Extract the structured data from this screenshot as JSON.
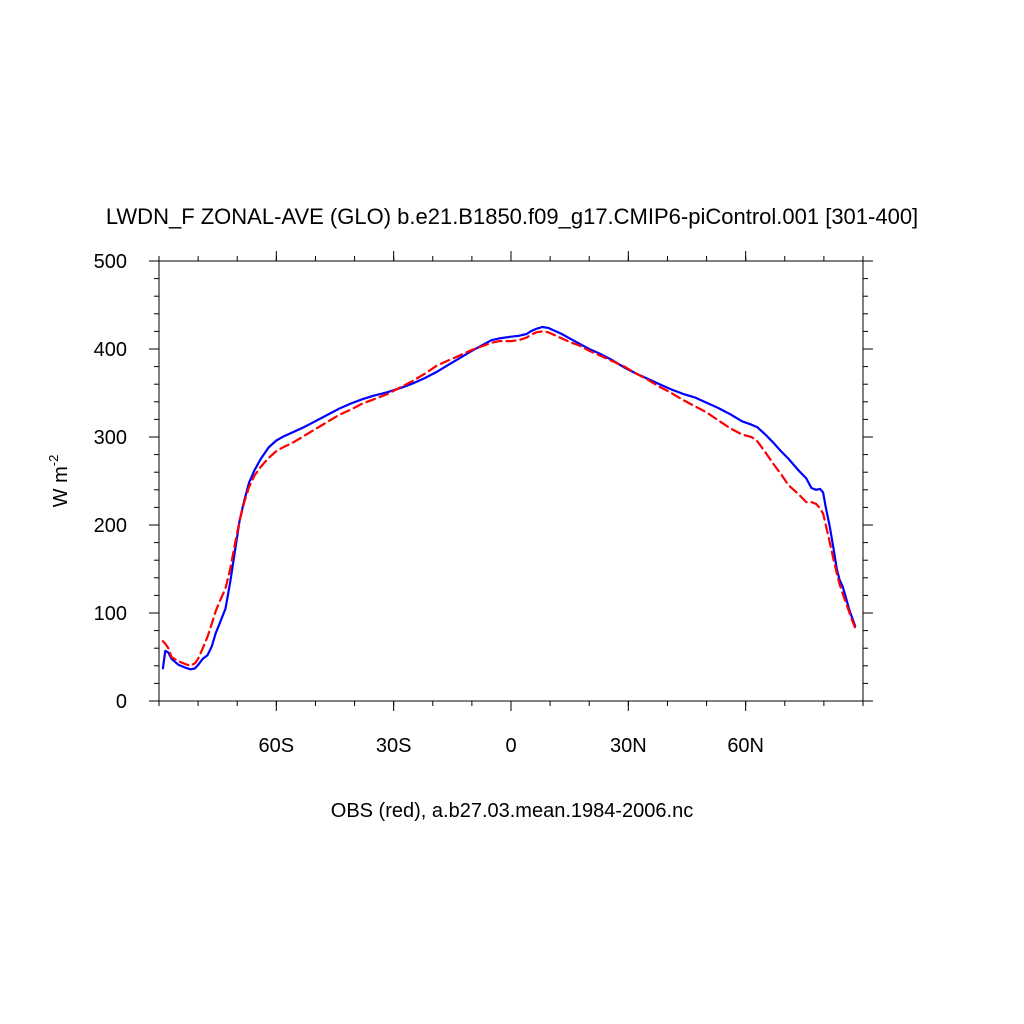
{
  "chart_data": {
    "type": "line",
    "title": "LWDN_F ZONAL-AVE (GLO) b.e21.B1850.f09_g17.CMIP6-piControl.001 [301-400]",
    "xlabel": "OBS (red), a.b27.03.mean.1984-2006.nc",
    "ylabel": {
      "base": "W m",
      "sup": "-2"
    },
    "xlim": [
      -90,
      90
    ],
    "ylim": [
      0,
      500
    ],
    "grid": false,
    "x_ticks": [
      {
        "value": -60,
        "label": "60S"
      },
      {
        "value": -30,
        "label": "30S"
      },
      {
        "value": 0,
        "label": "0"
      },
      {
        "value": 30,
        "label": "30N"
      },
      {
        "value": 60,
        "label": "60N"
      }
    ],
    "y_ticks": [
      {
        "value": 0,
        "label": "0"
      },
      {
        "value": 100,
        "label": "100"
      },
      {
        "value": 200,
        "label": "200"
      },
      {
        "value": 300,
        "label": "300"
      },
      {
        "value": 400,
        "label": "400"
      },
      {
        "value": 500,
        "label": "500"
      }
    ],
    "series": [
      {
        "color": "#0000ff",
        "style": "solid",
        "points": [
          [
            -89.0,
            37
          ],
          [
            -88.4,
            57
          ],
          [
            -87.6,
            55
          ],
          [
            -86.8,
            48
          ],
          [
            -85.0,
            41
          ],
          [
            -83.3,
            38
          ],
          [
            -82.0,
            36
          ],
          [
            -80.8,
            37
          ],
          [
            -80.0,
            41
          ],
          [
            -78.8,
            48
          ],
          [
            -77.6,
            52
          ],
          [
            -76.5,
            62
          ],
          [
            -75.5,
            77
          ],
          [
            -74.5,
            88
          ],
          [
            -73.0,
            105
          ],
          [
            -71.8,
            135
          ],
          [
            -70.6,
            170
          ],
          [
            -69.4,
            205
          ],
          [
            -68.2,
            228
          ],
          [
            -67.0,
            248
          ],
          [
            -65.6,
            262
          ],
          [
            -64.0,
            275
          ],
          [
            -62.0,
            288
          ],
          [
            -60.0,
            296
          ],
          [
            -58.0,
            301
          ],
          [
            -56.0,
            305
          ],
          [
            -53.0,
            311
          ],
          [
            -50.0,
            318
          ],
          [
            -47.0,
            325
          ],
          [
            -44.0,
            332
          ],
          [
            -41.0,
            338
          ],
          [
            -38.0,
            343
          ],
          [
            -35.0,
            347
          ],
          [
            -31.5,
            351
          ],
          [
            -28.0,
            356
          ],
          [
            -25.0,
            361
          ],
          [
            -22.0,
            367
          ],
          [
            -19.0,
            374
          ],
          [
            -16.0,
            382
          ],
          [
            -13.0,
            390
          ],
          [
            -10.0,
            398
          ],
          [
            -7.5,
            404
          ],
          [
            -5.0,
            410
          ],
          [
            -3.0,
            412
          ],
          [
            0.0,
            414
          ],
          [
            2.0,
            415
          ],
          [
            4.0,
            417
          ],
          [
            5.0,
            420
          ],
          [
            6.5,
            423
          ],
          [
            8.0,
            425
          ],
          [
            9.5,
            424
          ],
          [
            11.0,
            421
          ],
          [
            13.0,
            417
          ],
          [
            15.0,
            412
          ],
          [
            17.5,
            406
          ],
          [
            20.0,
            400
          ],
          [
            23.0,
            394
          ],
          [
            26.0,
            387
          ],
          [
            29.0,
            379
          ],
          [
            32.0,
            372
          ],
          [
            35.0,
            366
          ],
          [
            38.0,
            360
          ],
          [
            41.0,
            354
          ],
          [
            44.0,
            349
          ],
          [
            47.0,
            345
          ],
          [
            50.0,
            339
          ],
          [
            53.0,
            333
          ],
          [
            56.0,
            326
          ],
          [
            59.0,
            318
          ],
          [
            61.5,
            314
          ],
          [
            63.0,
            311
          ],
          [
            65.0,
            303
          ],
          [
            67.0,
            294
          ],
          [
            69.0,
            284
          ],
          [
            71.0,
            275
          ],
          [
            73.5,
            262
          ],
          [
            75.5,
            253
          ],
          [
            76.8,
            242
          ],
          [
            78.0,
            240
          ],
          [
            79.0,
            241
          ],
          [
            79.8,
            237
          ],
          [
            80.5,
            220
          ],
          [
            81.5,
            198
          ],
          [
            82.5,
            172
          ],
          [
            83.3,
            150
          ],
          [
            84.0,
            138
          ],
          [
            84.8,
            130
          ],
          [
            85.6,
            118
          ],
          [
            86.4,
            105
          ],
          [
            87.2,
            95
          ],
          [
            88.0,
            85
          ]
        ]
      },
      {
        "color": "#ff0000",
        "style": "dashed",
        "points": [
          [
            -89.0,
            68
          ],
          [
            -88.4,
            65
          ],
          [
            -87.6,
            60
          ],
          [
            -86.8,
            50
          ],
          [
            -85.0,
            45
          ],
          [
            -83.3,
            42
          ],
          [
            -82.0,
            40
          ],
          [
            -80.8,
            43
          ],
          [
            -80.0,
            48
          ],
          [
            -78.8,
            60
          ],
          [
            -77.6,
            73
          ],
          [
            -76.5,
            88
          ],
          [
            -75.5,
            102
          ],
          [
            -74.5,
            113
          ],
          [
            -73.0,
            128
          ],
          [
            -71.8,
            150
          ],
          [
            -70.6,
            178
          ],
          [
            -69.4,
            205
          ],
          [
            -68.2,
            226
          ],
          [
            -67.0,
            243
          ],
          [
            -65.6,
            256
          ],
          [
            -64.0,
            266
          ],
          [
            -62.0,
            276
          ],
          [
            -60.0,
            284
          ],
          [
            -58.0,
            289
          ],
          [
            -56.0,
            293
          ],
          [
            -53.0,
            301
          ],
          [
            -50.0,
            309
          ],
          [
            -47.0,
            317
          ],
          [
            -44.0,
            325
          ],
          [
            -41.0,
            331
          ],
          [
            -38.0,
            338
          ],
          [
            -35.0,
            343
          ],
          [
            -31.5,
            349
          ],
          [
            -28.0,
            357
          ],
          [
            -25.0,
            364
          ],
          [
            -22.0,
            372
          ],
          [
            -19.0,
            381
          ],
          [
            -16.0,
            387
          ],
          [
            -13.0,
            393
          ],
          [
            -10.0,
            399
          ],
          [
            -7.5,
            403
          ],
          [
            -5.0,
            407
          ],
          [
            -3.0,
            409
          ],
          [
            0.0,
            409
          ],
          [
            2.0,
            410
          ],
          [
            4.0,
            413
          ],
          [
            5.0,
            416
          ],
          [
            6.5,
            419
          ],
          [
            8.0,
            420
          ],
          [
            9.5,
            419
          ],
          [
            11.0,
            416
          ],
          [
            13.0,
            412
          ],
          [
            15.0,
            408
          ],
          [
            17.5,
            404
          ],
          [
            20.0,
            398
          ],
          [
            23.0,
            392
          ],
          [
            26.0,
            386
          ],
          [
            29.0,
            380
          ],
          [
            32.0,
            372
          ],
          [
            35.0,
            365
          ],
          [
            38.0,
            357
          ],
          [
            41.0,
            350
          ],
          [
            44.0,
            342
          ],
          [
            47.0,
            335
          ],
          [
            50.0,
            328
          ],
          [
            53.0,
            319
          ],
          [
            56.0,
            310
          ],
          [
            59.0,
            303
          ],
          [
            61.5,
            300
          ],
          [
            63.0,
            295
          ],
          [
            65.0,
            283
          ],
          [
            67.0,
            270
          ],
          [
            69.0,
            258
          ],
          [
            71.0,
            245
          ],
          [
            73.5,
            235
          ],
          [
            75.5,
            226
          ],
          [
            76.8,
            226
          ],
          [
            78.0,
            224
          ],
          [
            79.0,
            219
          ],
          [
            79.8,
            213
          ],
          [
            80.5,
            200
          ],
          [
            81.5,
            180
          ],
          [
            82.5,
            160
          ],
          [
            83.3,
            145
          ],
          [
            84.0,
            133
          ],
          [
            84.8,
            122
          ],
          [
            85.6,
            112
          ],
          [
            86.4,
            102
          ],
          [
            87.2,
            92
          ],
          [
            88.0,
            83
          ]
        ]
      }
    ]
  }
}
